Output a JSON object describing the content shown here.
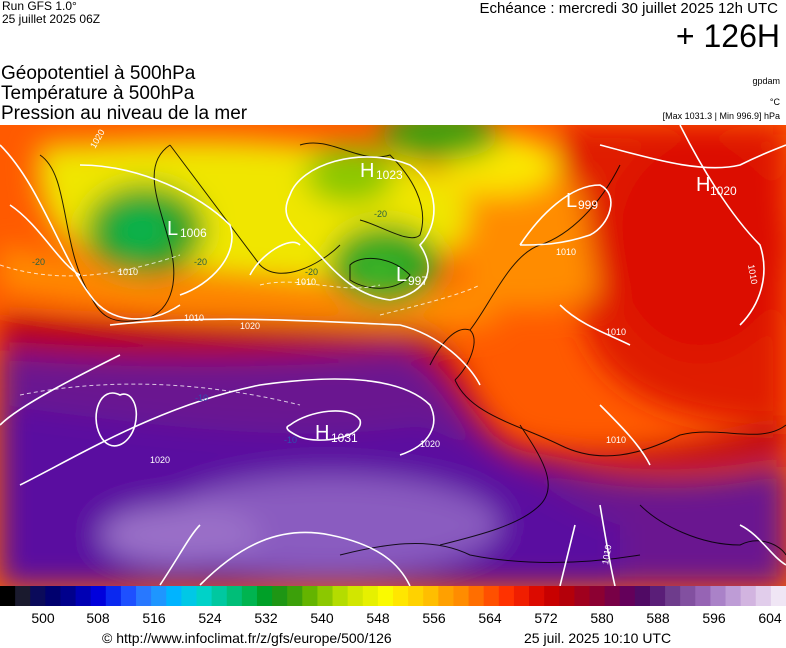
{
  "header": {
    "run_model": "Run GFS 1.0°",
    "run_date": "25 juillet 2025 06Z",
    "echeance": "Echéance : mercredi 30 juillet 2025 12h UTC",
    "lead_time": "+ 126H"
  },
  "titles": [
    "Géopotentiel à 500hPa",
    "Température à 500hPa",
    "Pression au niveau de la mer"
  ],
  "units": {
    "geopotential": "gpdam",
    "temperature": "°C",
    "pressure_range": "[Max 1031.3 | Min 996.9] hPa"
  },
  "pressure_centers": [
    {
      "type": "H",
      "value": "1023"
    },
    {
      "type": "L",
      "value": "999"
    },
    {
      "type": "H",
      "value": "1020"
    },
    {
      "type": "L",
      "value": "1006"
    },
    {
      "type": "L",
      "value": "997"
    },
    {
      "type": "H",
      "value": "1031"
    }
  ],
  "isobar_labels": [
    "1020",
    "1010",
    "1010",
    "1010",
    "1020",
    "1020",
    "1020",
    "1010",
    "1010",
    "1010",
    "1010",
    "1010"
  ],
  "isotherm_labels": [
    "-20",
    "-20",
    "-20",
    "-20",
    "-10",
    "-10"
  ],
  "colorscale": {
    "ticks": [
      "500",
      "508",
      "516",
      "524",
      "532",
      "540",
      "548",
      "556",
      "564",
      "572",
      "580",
      "588",
      "596",
      "604"
    ],
    "colors": [
      "#000000",
      "#1a1a2e",
      "#0a0a5a",
      "#00006e",
      "#00008c",
      "#0000b4",
      "#0000dc",
      "#0a28f0",
      "#1e50ff",
      "#2878ff",
      "#1e96ff",
      "#00b4ff",
      "#00c8e6",
      "#00d2c8",
      "#00c8a0",
      "#00be78",
      "#00b450",
      "#00a028",
      "#1e9614",
      "#3ca00a",
      "#64b400",
      "#8cc800",
      "#b4dc00",
      "#d2e600",
      "#e6f000",
      "#fafa00",
      "#ffe600",
      "#ffd200",
      "#ffbe00",
      "#ffa000",
      "#ff8c00",
      "#ff6e00",
      "#ff5000",
      "#ff3200",
      "#f01e00",
      "#dc0a00",
      "#c80000",
      "#b4000a",
      "#a0001e",
      "#8c0032",
      "#780046",
      "#64005a",
      "#500a64",
      "#5a1e78",
      "#6e3c8c",
      "#8250a0",
      "#9664b4",
      "#aa82c8",
      "#be9cd6",
      "#d2b4e0",
      "#e1cdeb",
      "#f0e6f5"
    ]
  },
  "footer": {
    "credit": "© http://www.infoclimat.fr/z/gfs/europe/500/126",
    "generated": "25 juil. 2025 10:10 UTC"
  }
}
